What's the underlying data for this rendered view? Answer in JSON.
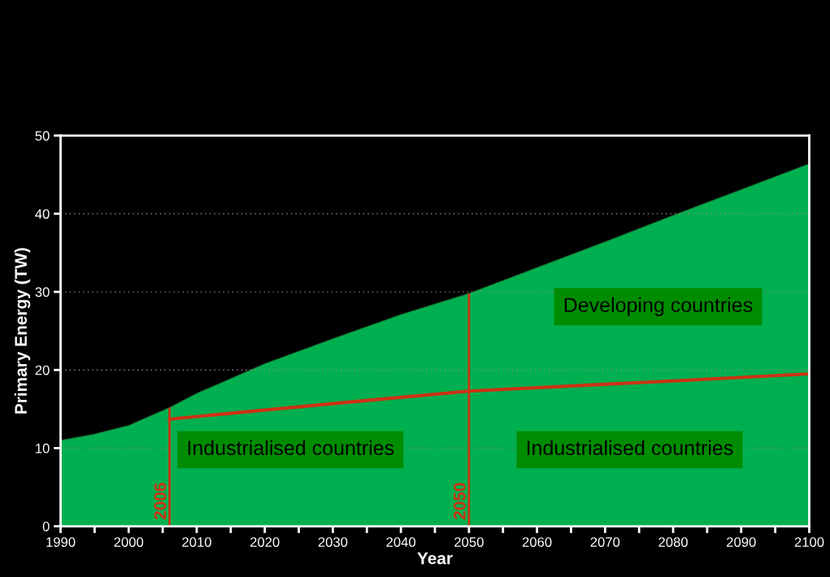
{
  "chart_data": {
    "type": "area",
    "xlabel": "Year",
    "ylabel": "Primary Energy (TW)",
    "series": [
      {
        "color": "#00b050",
        "x": [
          1990,
          1995,
          2000,
          2006,
          2010,
          2020,
          2030,
          2040,
          2050,
          2060,
          2070,
          2080,
          2090,
          2100
        ],
        "values": [
          11,
          11.8,
          12.9,
          15.2,
          17,
          20.8,
          24,
          27.1,
          29.8,
          33.1,
          36.4,
          39.8,
          43.1,
          46.4
        ]
      },
      {
        "type": "line",
        "color": "#cc3314",
        "x": [
          2006,
          2030,
          2050,
          2080,
          2100
        ],
        "values": [
          13.7,
          15.7,
          17.3,
          18.6,
          19.5
        ]
      }
    ],
    "xlim": [
      1990,
      2100
    ],
    "ylim": [
      0,
      50
    ],
    "xticks": [
      1990,
      {
        "value": 1995,
        "label": null
      },
      2000,
      {
        "value": 2005,
        "label": null
      },
      2010,
      {
        "value": 2015,
        "label": null
      },
      2020,
      {
        "value": 2025,
        "label": null
      },
      2030,
      {
        "value": 2035,
        "label": null
      },
      2040,
      {
        "value": 2045,
        "label": null
      },
      2050,
      {
        "value": 2055,
        "label": null
      },
      2060,
      {
        "value": 2065,
        "label": null
      },
      2070,
      {
        "value": 2075,
        "label": null
      },
      2080,
      {
        "value": 2085,
        "label": null
      },
      2090,
      {
        "value": 2095,
        "label": null
      },
      2100
    ],
    "yticks": [
      0,
      10,
      20,
      30,
      40,
      50
    ],
    "ref_lines": [
      {
        "axis": "x",
        "value": 2006,
        "label": "2006",
        "color": "#cc3314"
      },
      {
        "axis": "x",
        "value": 2050,
        "label": "2050",
        "color": "#cc3314"
      }
    ],
    "annotations": [
      "Industrialised countries",
      "Industrialised countries",
      "Developing countries"
    ],
    "grid": "y",
    "legend": false,
    "marker": "none",
    "line_style": "solid"
  }
}
